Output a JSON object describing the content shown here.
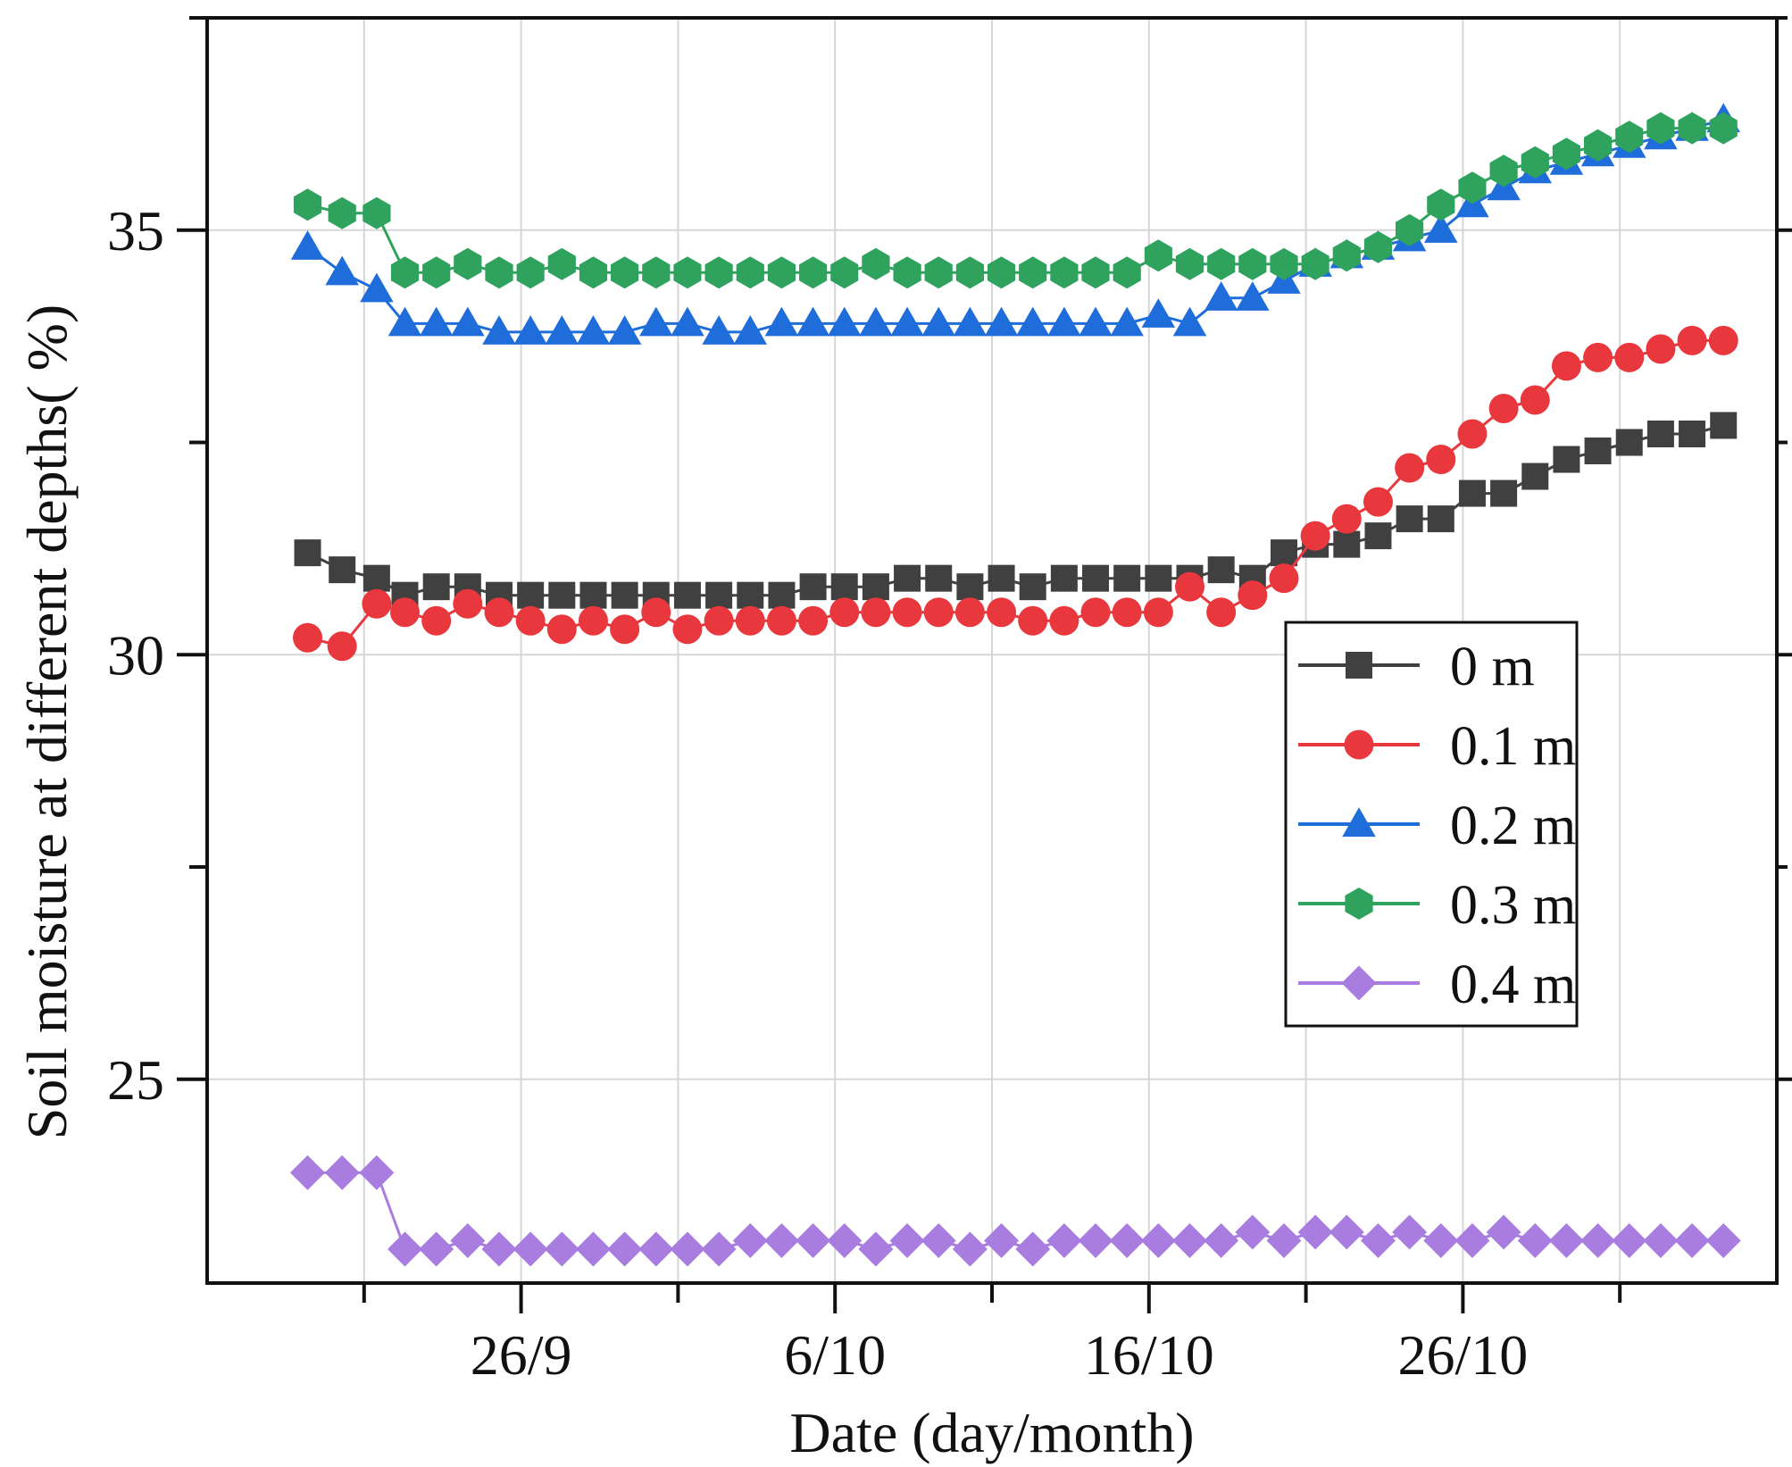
{
  "chart_data": {
    "type": "line",
    "title": "",
    "xlabel": "Date (day/month)",
    "ylabel": "Soil moisture at different depths(   %)",
    "x_tick_labels": [
      {
        "value": 26,
        "label": "26/9"
      },
      {
        "value": 36,
        "label": "6/10"
      },
      {
        "value": 46,
        "label": "16/10"
      },
      {
        "value": 56,
        "label": "26/10"
      }
    ],
    "xlim": [
      16,
      66
    ],
    "x_minor_step": 5,
    "ylim": [
      22.6,
      37.5
    ],
    "y_ticks": [
      25,
      30,
      35
    ],
    "y_minor_ticks": [
      22.5,
      27.5,
      32.5,
      37.5
    ],
    "grid": true,
    "legend_position": "right-middle",
    "x": [
      19.2,
      20.3,
      21.4,
      22.3,
      23.3,
      24.3,
      25.3,
      26.3,
      27.3,
      28.3,
      29.3,
      30.3,
      31.3,
      32.3,
      33.3,
      34.3,
      35.3,
      36.3,
      37.3,
      38.3,
      39.3,
      40.3,
      41.3,
      42.3,
      43.3,
      44.3,
      45.3,
      46.3,
      47.3,
      48.3,
      49.3,
      50.3,
      51.3,
      52.3,
      53.3,
      54.3,
      55.3,
      56.3,
      57.3,
      58.3,
      59.3,
      60.3,
      61.3,
      62.3,
      63.3,
      64.3
    ],
    "series": [
      {
        "name": "0 m",
        "color": "#404040",
        "marker": "square",
        "values": [
          31.2,
          31.0,
          30.9,
          30.7,
          30.8,
          30.8,
          30.7,
          30.7,
          30.7,
          30.7,
          30.7,
          30.7,
          30.7,
          30.7,
          30.7,
          30.7,
          30.8,
          30.8,
          30.8,
          30.9,
          30.9,
          30.8,
          30.9,
          30.8,
          30.9,
          30.9,
          30.9,
          30.9,
          30.9,
          31.0,
          30.9,
          31.2,
          31.3,
          31.3,
          31.4,
          31.6,
          31.6,
          31.9,
          31.9,
          32.1,
          32.3,
          32.4,
          32.5,
          32.6,
          32.6,
          32.7
        ]
      },
      {
        "name": "0.1 m",
        "color": "#e8383d",
        "marker": "circle",
        "values": [
          30.2,
          30.1,
          30.6,
          30.5,
          30.4,
          30.6,
          30.5,
          30.4,
          30.3,
          30.4,
          30.3,
          30.5,
          30.3,
          30.4,
          30.4,
          30.4,
          30.4,
          30.5,
          30.5,
          30.5,
          30.5,
          30.5,
          30.5,
          30.4,
          30.4,
          30.5,
          30.5,
          30.5,
          30.8,
          30.5,
          30.7,
          30.9,
          31.4,
          31.6,
          31.8,
          32.2,
          32.3,
          32.6,
          32.9,
          33.0,
          33.4,
          33.5,
          33.5,
          33.6,
          33.7,
          33.7
        ]
      },
      {
        "name": "0.2 m",
        "color": "#1f6ddb",
        "marker": "triangle",
        "values": [
          34.8,
          34.5,
          34.3,
          33.9,
          33.9,
          33.9,
          33.8,
          33.8,
          33.8,
          33.8,
          33.8,
          33.9,
          33.9,
          33.8,
          33.8,
          33.9,
          33.9,
          33.9,
          33.9,
          33.9,
          33.9,
          33.9,
          33.9,
          33.9,
          33.9,
          33.9,
          33.9,
          34.0,
          33.9,
          34.2,
          34.2,
          34.4,
          34.6,
          34.7,
          34.8,
          34.9,
          35.0,
          35.3,
          35.5,
          35.7,
          35.8,
          35.9,
          36.0,
          36.1,
          36.2,
          36.3
        ]
      },
      {
        "name": "0.3 m",
        "color": "#2fa35e",
        "marker": "hexagon",
        "values": [
          35.3,
          35.2,
          35.2,
          34.5,
          34.5,
          34.6,
          34.5,
          34.5,
          34.6,
          34.5,
          34.5,
          34.5,
          34.5,
          34.5,
          34.5,
          34.5,
          34.5,
          34.5,
          34.6,
          34.5,
          34.5,
          34.5,
          34.5,
          34.5,
          34.5,
          34.5,
          34.5,
          34.7,
          34.6,
          34.6,
          34.6,
          34.6,
          34.6,
          34.7,
          34.8,
          35.0,
          35.3,
          35.5,
          35.7,
          35.8,
          35.9,
          36.0,
          36.1,
          36.2,
          36.2,
          36.2
        ]
      },
      {
        "name": "0.4 m",
        "color": "#a97de0",
        "marker": "diamond",
        "values": [
          23.9,
          23.9,
          23.9,
          23.0,
          23.0,
          23.1,
          23.0,
          23.0,
          23.0,
          23.0,
          23.0,
          23.0,
          23.0,
          23.0,
          23.1,
          23.1,
          23.1,
          23.1,
          23.0,
          23.1,
          23.1,
          23.0,
          23.1,
          23.0,
          23.1,
          23.1,
          23.1,
          23.1,
          23.1,
          23.1,
          23.2,
          23.1,
          23.2,
          23.2,
          23.1,
          23.2,
          23.1,
          23.1,
          23.2,
          23.1,
          23.1,
          23.1,
          23.1,
          23.1,
          23.1,
          23.1
        ]
      }
    ]
  }
}
